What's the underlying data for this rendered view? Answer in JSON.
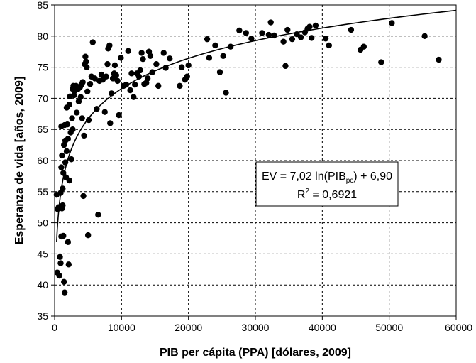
{
  "chart_data": {
    "type": "scatter",
    "xlabel": "PIB per cápita (PPA) [dólares, 2009]",
    "ylabel": "Esperanza de vida [años, 2009]",
    "xlim": [
      0,
      60000
    ],
    "ylim": [
      35,
      85
    ],
    "xticks": [
      0,
      10000,
      20000,
      30000,
      40000,
      50000,
      60000
    ],
    "yticks": [
      35,
      40,
      45,
      50,
      55,
      60,
      65,
      70,
      75,
      80,
      85
    ],
    "xtick_labels": [
      "0",
      "10000",
      "20000",
      "30000",
      "40000",
      "50000",
      "60000"
    ],
    "ytick_labels": [
      "35",
      "40",
      "45",
      "50",
      "55",
      "60",
      "65",
      "70",
      "75",
      "80",
      "85"
    ],
    "grid": true,
    "trendline": {
      "type": "logarithmic",
      "a": 7.02,
      "b": 6.9,
      "x_start": 300,
      "x_end": 60000
    },
    "equation": {
      "line1_prefix": "EV = 7,02 ln(PIB",
      "line1_sub": "pc",
      "line1_suffix": ") + 6,90",
      "line2_prefix": "R",
      "line2_sup": "2",
      "line2_suffix": " = 0,6921"
    },
    "points": [
      [
        300,
        54.5
      ],
      [
        450,
        52.2
      ],
      [
        600,
        52.5
      ],
      [
        400,
        42
      ],
      [
        700,
        41.5
      ],
      [
        800,
        44.5
      ],
      [
        900,
        43.5
      ],
      [
        1000,
        47.8
      ],
      [
        1100,
        52.3
      ],
      [
        1200,
        52.8
      ],
      [
        900,
        54.8
      ],
      [
        1000,
        58.9
      ],
      [
        1100,
        60.8
      ],
      [
        1300,
        47.9
      ],
      [
        1400,
        40.5
      ],
      [
        1500,
        38.8
      ],
      [
        1200,
        55.5
      ],
      [
        1300,
        58
      ],
      [
        1600,
        59.7
      ],
      [
        1700,
        57.3
      ],
      [
        1800,
        61.5
      ],
      [
        1900,
        65.8
      ],
      [
        1500,
        65.7
      ],
      [
        1000,
        65.5
      ],
      [
        2000,
        46.9
      ],
      [
        2100,
        43.3
      ],
      [
        2200,
        56.8
      ],
      [
        1400,
        62.5
      ],
      [
        1600,
        63.2
      ],
      [
        2000,
        63.5
      ],
      [
        1800,
        68.5
      ],
      [
        2200,
        69
      ],
      [
        2400,
        64.5
      ],
      [
        2500,
        60.2
      ],
      [
        2600,
        66.8
      ],
      [
        2700,
        65
      ],
      [
        2300,
        70.3
      ],
      [
        2700,
        71.5
      ],
      [
        2800,
        72
      ],
      [
        3000,
        71.2
      ],
      [
        3200,
        72
      ],
      [
        2900,
        70.5
      ],
      [
        3300,
        67.7
      ],
      [
        3500,
        71.5
      ],
      [
        3600,
        69.5
      ],
      [
        3800,
        71.8
      ],
      [
        3900,
        70.2
      ],
      [
        4000,
        72.2
      ],
      [
        4200,
        72.6
      ],
      [
        4300,
        54.3
      ],
      [
        4400,
        64
      ],
      [
        4100,
        66.8
      ],
      [
        4500,
        75.5
      ],
      [
        4600,
        76.7
      ],
      [
        4700,
        75.9
      ],
      [
        4800,
        75
      ],
      [
        5000,
        48
      ],
      [
        4900,
        71.1
      ],
      [
        5100,
        66.5
      ],
      [
        5300,
        72.3
      ],
      [
        5500,
        73.5
      ],
      [
        5700,
        79
      ],
      [
        6000,
        73.2
      ],
      [
        6300,
        68.3
      ],
      [
        6500,
        51.3
      ],
      [
        6700,
        72.8
      ],
      [
        7000,
        73.8
      ],
      [
        7200,
        73
      ],
      [
        7500,
        67.8
      ],
      [
        7700,
        73.5
      ],
      [
        7900,
        75.5
      ],
      [
        8000,
        78
      ],
      [
        8200,
        78.5
      ],
      [
        8300,
        66
      ],
      [
        8500,
        70.8
      ],
      [
        8700,
        73.2
      ],
      [
        8900,
        74
      ],
      [
        9000,
        75.3
      ],
      [
        9200,
        73.7
      ],
      [
        9400,
        72.8
      ],
      [
        9600,
        67.3
      ],
      [
        9900,
        76.5
      ],
      [
        10300,
        72
      ],
      [
        10700,
        72.2
      ],
      [
        11000,
        77.6
      ],
      [
        11300,
        71.3
      ],
      [
        11500,
        74
      ],
      [
        11800,
        70.2
      ],
      [
        12000,
        72.2
      ],
      [
        12300,
        74
      ],
      [
        12600,
        73.5
      ],
      [
        12800,
        74.5
      ],
      [
        13000,
        77.3
      ],
      [
        13200,
        76.3
      ],
      [
        13400,
        72.3
      ],
      [
        13700,
        72.5
      ],
      [
        13900,
        73.2
      ],
      [
        14100,
        77.5
      ],
      [
        14300,
        76.8
      ],
      [
        14600,
        74.2
      ],
      [
        15200,
        75.5
      ],
      [
        15500,
        72
      ],
      [
        16300,
        77.3
      ],
      [
        16600,
        74.9
      ],
      [
        17200,
        76.4
      ],
      [
        18700,
        72
      ],
      [
        19000,
        75
      ],
      [
        19500,
        73
      ],
      [
        19800,
        73.5
      ],
      [
        20000,
        75.3
      ],
      [
        22800,
        79.5
      ],
      [
        23100,
        76.5
      ],
      [
        24000,
        78.5
      ],
      [
        24700,
        74.2
      ],
      [
        25200,
        76.8
      ],
      [
        25600,
        70.9
      ],
      [
        26300,
        78.3
      ],
      [
        27600,
        80.9
      ],
      [
        28600,
        80.5
      ],
      [
        29400,
        79.6
      ],
      [
        31000,
        80.5
      ],
      [
        32000,
        80.2
      ],
      [
        32300,
        82.2
      ],
      [
        32800,
        80.1
      ],
      [
        34200,
        79.1
      ],
      [
        34500,
        75.2
      ],
      [
        34800,
        81
      ],
      [
        35500,
        79.5
      ],
      [
        36200,
        80.3
      ],
      [
        36800,
        79.8
      ],
      [
        37400,
        80.6
      ],
      [
        37800,
        81.2
      ],
      [
        38100,
        81.5
      ],
      [
        38400,
        79.7
      ],
      [
        39000,
        81.7
      ],
      [
        40500,
        79.6
      ],
      [
        41000,
        78.5
      ],
      [
        44300,
        81
      ],
      [
        45700,
        77.8
      ],
      [
        46200,
        78.3
      ],
      [
        48800,
        75.8
      ],
      [
        50400,
        82.1
      ],
      [
        55300,
        80
      ],
      [
        57400,
        76.2
      ]
    ]
  }
}
